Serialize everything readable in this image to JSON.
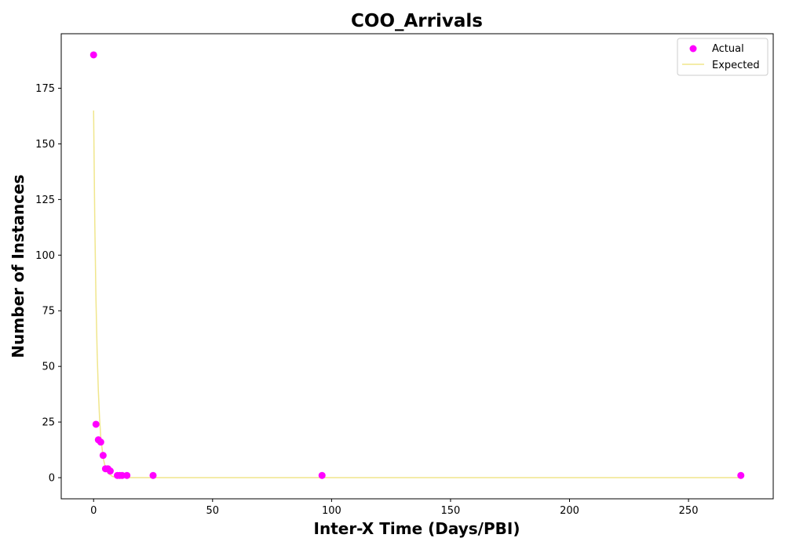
{
  "chart_data": {
    "type": "scatter",
    "title": "COO_Arrivals",
    "xlabel": "Inter-X Time (Days/PBI)",
    "ylabel": "Number of Instances",
    "xlim": [
      -13.6,
      285.6
    ],
    "ylim": [
      -9.5,
      199.5
    ],
    "xticks": [
      0,
      50,
      100,
      150,
      200,
      250
    ],
    "yticks": [
      0,
      25,
      50,
      75,
      100,
      125,
      150,
      175
    ],
    "grid": false,
    "legend_position": "top-right",
    "series": [
      {
        "name": "Actual",
        "kind": "scatter",
        "color": "#ff00ff",
        "points": [
          [
            0,
            190
          ],
          [
            1,
            24
          ],
          [
            2,
            17
          ],
          [
            3,
            16
          ],
          [
            4,
            10
          ],
          [
            5,
            4
          ],
          [
            6,
            4
          ],
          [
            7,
            3
          ],
          [
            10,
            1
          ],
          [
            11,
            1
          ],
          [
            12,
            1
          ],
          [
            14,
            1
          ],
          [
            25,
            1
          ],
          [
            96,
            1
          ],
          [
            272,
            1
          ]
        ]
      },
      {
        "name": "Expected",
        "kind": "line",
        "color": "#f0e68c",
        "points": [
          [
            0,
            165
          ],
          [
            0.5,
            115
          ],
          [
            1,
            80
          ],
          [
            1.5,
            56
          ],
          [
            2,
            39
          ],
          [
            2.5,
            27
          ],
          [
            3,
            18.5
          ],
          [
            4,
            9
          ],
          [
            5,
            4.3
          ],
          [
            6,
            2.1
          ],
          [
            8,
            0.5
          ],
          [
            10,
            0.12
          ],
          [
            12,
            0.03
          ],
          [
            15,
            0
          ],
          [
            50,
            0
          ],
          [
            100,
            0
          ],
          [
            150,
            0
          ],
          [
            200,
            0
          ],
          [
            250,
            0
          ],
          [
            272,
            0
          ]
        ]
      }
    ]
  }
}
